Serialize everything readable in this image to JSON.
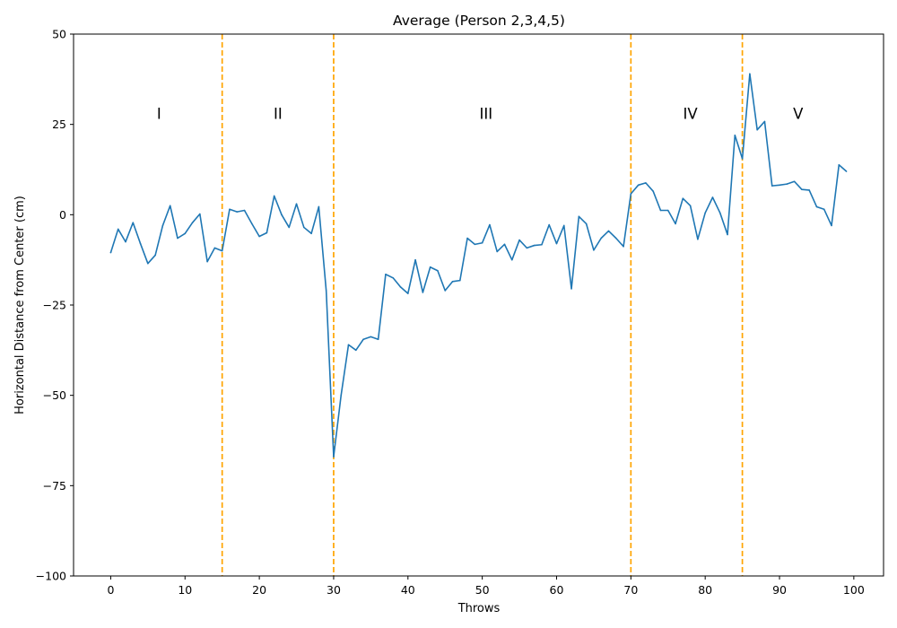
{
  "chart_data": {
    "type": "line",
    "title": "Average (Person 2,3,4,5)",
    "xlabel": "Throws",
    "ylabel": "Horizontal Distance from Center (cm)",
    "xlim": [
      -5,
      104
    ],
    "ylim": [
      -100,
      50
    ],
    "xticks": [
      0,
      10,
      20,
      30,
      40,
      50,
      60,
      70,
      80,
      90,
      100
    ],
    "yticks": [
      -100,
      -75,
      -50,
      -25,
      0,
      25,
      50
    ],
    "ytick_labels": [
      "−100",
      "−75",
      "−50",
      "−25",
      "0",
      "25",
      "50"
    ],
    "grid": false,
    "series": [
      {
        "color": "#1f77b4",
        "x": [
          0,
          1,
          2,
          3,
          4,
          5,
          6,
          7,
          8,
          9,
          10,
          11,
          12,
          13,
          14,
          15,
          16,
          17,
          18,
          19,
          20,
          21,
          22,
          23,
          24,
          25,
          26,
          27,
          28,
          29,
          30,
          31,
          32,
          33,
          34,
          35,
          36,
          37,
          38,
          39,
          40,
          41,
          42,
          43,
          44,
          45,
          46,
          47,
          48,
          49,
          50,
          51,
          52,
          53,
          54,
          55,
          56,
          57,
          58,
          59,
          60,
          61,
          62,
          63,
          64,
          65,
          66,
          67,
          68,
          69,
          70,
          71,
          72,
          73,
          74,
          75,
          76,
          77,
          78,
          79,
          80,
          81,
          82,
          83,
          84,
          85,
          86,
          87,
          88,
          89,
          90,
          91,
          92,
          93,
          94,
          95,
          96,
          97,
          98,
          99
        ],
        "values": [
          -10.5,
          -4,
          -7.5,
          -2.2,
          -8,
          -13.5,
          -11.2,
          -3,
          2.5,
          -6.5,
          -5.2,
          -2.2,
          0.2,
          -13,
          -9.2,
          -10,
          1.5,
          0.8,
          1.2,
          -2.5,
          -6,
          -5,
          5.2,
          0,
          -3.5,
          3,
          -3.5,
          -5.2,
          2.2,
          -21,
          -67,
          -50,
          -36,
          -37.5,
          -34.5,
          -33.8,
          -34.5,
          -16.5,
          -17.5,
          -20,
          -21.8,
          -12.5,
          -21.5,
          -14.5,
          -15.5,
          -21,
          -18.5,
          -18.2,
          -6.5,
          -8.2,
          -7.8,
          -2.8,
          -10.2,
          -8.2,
          -12.5,
          -7,
          -9.2,
          -8.5,
          -8.3,
          -2.8,
          -8,
          -3,
          -20.5,
          -0.5,
          -2.5,
          -9.8,
          -6.5,
          -4.5,
          -6.5,
          -8.8,
          5.8,
          8.2,
          8.8,
          6.5,
          1.2,
          1.2,
          -2.5,
          4.5,
          2.5,
          -6.8,
          0.5,
          4.8,
          0.5,
          -5.5,
          22,
          15.5,
          39,
          23.5,
          25.8,
          8,
          8.2,
          8.5,
          9.2,
          7,
          6.8,
          2.2,
          1.5,
          -3,
          13.8,
          12
        ]
      }
    ],
    "vlines": {
      "color": "#ffa500",
      "style": "dashed",
      "x": [
        15,
        30,
        70,
        85
      ]
    },
    "annotations": [
      {
        "text": "I",
        "x": 6.5,
        "y": 26.5
      },
      {
        "text": "II",
        "x": 22.5,
        "y": 26.5
      },
      {
        "text": "III",
        "x": 50.5,
        "y": 26.5
      },
      {
        "text": "IV",
        "x": 78,
        "y": 26.5
      },
      {
        "text": "V",
        "x": 92.5,
        "y": 26.5
      }
    ]
  }
}
